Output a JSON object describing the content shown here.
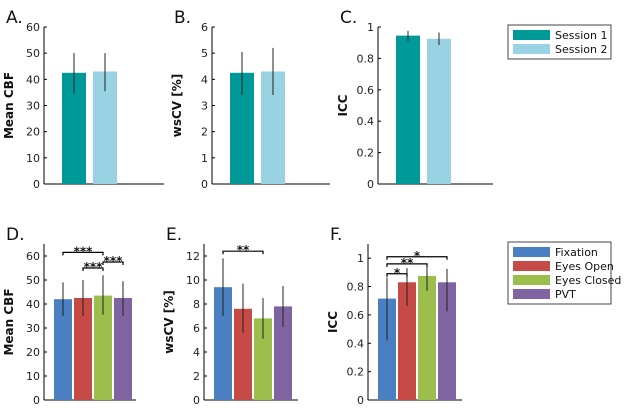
{
  "colors": {
    "session1": "#00999a",
    "session2": "#98d2e3",
    "fixation": "#4a7fc1",
    "eyes_open": "#c64b47",
    "eyes_closed": "#9bbe4c",
    "pvt": "#8064a2",
    "axis": "#000000",
    "errorbar": "#222222"
  },
  "legends": [
    {
      "id": "legend-top",
      "entries": [
        {
          "label": "Session 1",
          "color": "session1"
        },
        {
          "label": "Session 2",
          "color": "session2"
        }
      ]
    },
    {
      "id": "legend-bottom",
      "entries": [
        {
          "label": "Fixation",
          "color": "fixation"
        },
        {
          "label": "Eyes Open",
          "color": "eyes_open"
        },
        {
          "label": "Eyes Closed",
          "color": "eyes_closed"
        },
        {
          "label": "PVT",
          "color": "pvt"
        }
      ]
    }
  ],
  "chart_data": [
    {
      "panel": "A.",
      "type": "bar",
      "ylabel": "Mean CBF",
      "ylim": [
        0,
        60
      ],
      "yticks": [
        0,
        10,
        20,
        30,
        40,
        50,
        60
      ],
      "ytick_labels": [
        "0",
        "10",
        "20",
        "30",
        "40",
        "50",
        "60"
      ],
      "bars": [
        {
          "name": "Session 1",
          "value": 42.5,
          "err": [
            34.5,
            50.0
          ],
          "color": "session1"
        },
        {
          "name": "Session 2",
          "value": 43.0,
          "err": [
            35.5,
            50.0
          ],
          "color": "session2"
        }
      ],
      "sig": []
    },
    {
      "panel": "B.",
      "type": "bar",
      "ylabel": "wsCV [%]",
      "ylim": [
        0,
        6
      ],
      "yticks": [
        0,
        1,
        2,
        3,
        4,
        5,
        6
      ],
      "ytick_labels": [
        "0",
        "1",
        "2",
        "3",
        "4",
        "5",
        "6"
      ],
      "bars": [
        {
          "name": "Session 1",
          "value": 4.25,
          "err": [
            3.4,
            5.05
          ],
          "color": "session1"
        },
        {
          "name": "Session 2",
          "value": 4.3,
          "err": [
            3.4,
            5.2
          ],
          "color": "session2"
        }
      ],
      "sig": []
    },
    {
      "panel": "C.",
      "type": "bar",
      "ylabel": "ICC",
      "ylim": [
        0,
        1
      ],
      "yticks": [
        0,
        0.2,
        0.4,
        0.6,
        0.8,
        1
      ],
      "ytick_labels": [
        "0",
        "0.2",
        "0.4",
        "0.6",
        "0.8",
        "1"
      ],
      "bars": [
        {
          "name": "Session 1",
          "value": 0.945,
          "err": [
            0.91,
            0.975
          ],
          "color": "session1"
        },
        {
          "name": "Session 2",
          "value": 0.925,
          "err": [
            0.885,
            0.965
          ],
          "color": "session2"
        }
      ],
      "sig": []
    },
    {
      "panel": "D.",
      "type": "bar",
      "ylabel": "Mean CBF",
      "ylim": [
        0,
        65
      ],
      "yticks": [
        0,
        10,
        20,
        30,
        40,
        50,
        60
      ],
      "ytick_labels": [
        "0",
        "10",
        "20",
        "30",
        "40",
        "50",
        "60"
      ],
      "bars": [
        {
          "name": "Fixation",
          "value": 42.0,
          "err": [
            35.0,
            49.0
          ],
          "color": "fixation"
        },
        {
          "name": "Eyes Open",
          "value": 42.5,
          "err": [
            35.0,
            50.0
          ],
          "color": "eyes_open"
        },
        {
          "name": "Eyes Closed",
          "value": 43.5,
          "err": [
            35.5,
            52.0
          ],
          "color": "eyes_closed"
        },
        {
          "name": "PVT",
          "value": 42.5,
          "err": [
            35.0,
            49.5
          ],
          "color": "pvt"
        }
      ],
      "sig": [
        {
          "from": 0,
          "to": 2,
          "label": "***",
          "level": 61.5
        },
        {
          "from": 1,
          "to": 2,
          "label": "***",
          "level": 55.0
        },
        {
          "from": 2,
          "to": 3,
          "label": "***",
          "level": 57.5
        }
      ]
    },
    {
      "panel": "E.",
      "type": "bar",
      "ylabel": "wsCV [%]",
      "ylim": [
        0,
        13
      ],
      "yticks": [
        0,
        2,
        4,
        6,
        8,
        10,
        12
      ],
      "ytick_labels": [
        "0",
        "2",
        "4",
        "6",
        "8",
        "10",
        "12"
      ],
      "bars": [
        {
          "name": "Fixation",
          "value": 9.4,
          "err": [
            7.0,
            11.8
          ],
          "color": "fixation"
        },
        {
          "name": "Eyes Open",
          "value": 7.6,
          "err": [
            5.6,
            9.7
          ],
          "color": "eyes_open"
        },
        {
          "name": "Eyes Closed",
          "value": 6.8,
          "err": [
            5.1,
            8.5
          ],
          "color": "eyes_closed"
        },
        {
          "name": "PVT",
          "value": 7.8,
          "err": [
            6.1,
            9.5
          ],
          "color": "pvt"
        }
      ],
      "sig": [
        {
          "from": 0,
          "to": 2,
          "label": "**",
          "level": 12.4
        }
      ]
    },
    {
      "panel": "F.",
      "type": "bar",
      "ylabel": "ICC",
      "ylim": [
        0,
        1.1
      ],
      "yticks": [
        0,
        0.2,
        0.4,
        0.6,
        0.8,
        1
      ],
      "ytick_labels": [
        "0",
        "0.2",
        "0.4",
        "0.6",
        "0.8",
        "1"
      ],
      "bars": [
        {
          "name": "Fixation",
          "value": 0.715,
          "err": [
            0.42,
            0.865
          ],
          "color": "fixation"
        },
        {
          "name": "Eyes Open",
          "value": 0.83,
          "err": [
            0.665,
            0.93
          ],
          "color": "eyes_open"
        },
        {
          "name": "Eyes Closed",
          "value": 0.875,
          "err": [
            0.77,
            0.945
          ],
          "color": "eyes_closed"
        },
        {
          "name": "PVT",
          "value": 0.83,
          "err": [
            0.625,
            0.925
          ],
          "color": "pvt"
        }
      ],
      "sig": [
        {
          "from": 0,
          "to": 3,
          "label": "*",
          "level": 1.01
        },
        {
          "from": 0,
          "to": 2,
          "label": "**",
          "level": 0.96
        },
        {
          "from": 0,
          "to": 1,
          "label": "*",
          "level": 0.89
        }
      ]
    }
  ]
}
